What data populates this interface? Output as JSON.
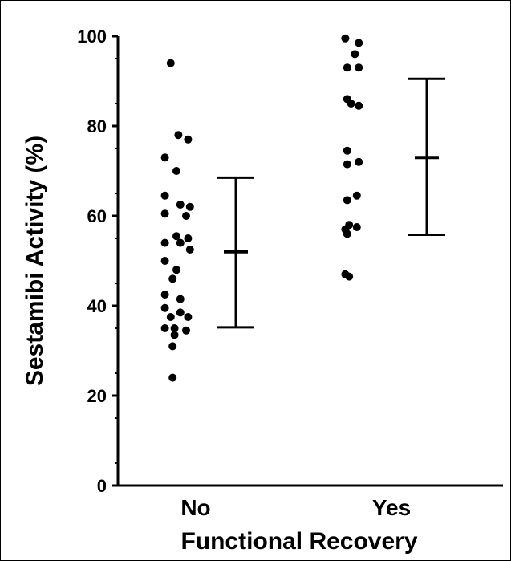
{
  "chart_data": {
    "type": "scatter",
    "title": "",
    "xlabel": "Functional Recovery",
    "ylabel": "Sestamibi Activity (%)",
    "categories": [
      "No",
      "Yes"
    ],
    "ylim": [
      0,
      100
    ],
    "yticks": [
      "0",
      "20",
      "40",
      "60",
      "80",
      "100"
    ],
    "grid": false,
    "series": [
      {
        "category": "No",
        "points": [
          [
            -0.13,
            94
          ],
          [
            -0.09,
            78
          ],
          [
            -0.04,
            77
          ],
          [
            -0.16,
            73
          ],
          [
            -0.1,
            70
          ],
          [
            -0.16,
            64.5
          ],
          [
            -0.08,
            62.5
          ],
          [
            -0.03,
            62
          ],
          [
            -0.16,
            60.5
          ],
          [
            -0.05,
            60
          ],
          [
            -0.1,
            55.5
          ],
          [
            -0.04,
            55
          ],
          [
            -0.16,
            54
          ],
          [
            -0.08,
            54
          ],
          [
            -0.03,
            52.5
          ],
          [
            -0.16,
            50
          ],
          [
            -0.1,
            48
          ],
          [
            -0.12,
            46
          ],
          [
            -0.16,
            42.5
          ],
          [
            -0.08,
            41.5
          ],
          [
            -0.16,
            39.5
          ],
          [
            -0.08,
            38.5
          ],
          [
            -0.13,
            37.5
          ],
          [
            -0.04,
            37.5
          ],
          [
            -0.16,
            35
          ],
          [
            -0.11,
            35
          ],
          [
            -0.05,
            34.5
          ],
          [
            -0.11,
            33.5
          ],
          [
            -0.12,
            31
          ],
          [
            -0.12,
            24
          ]
        ],
        "mean": 52,
        "sd_low": 35.2,
        "sd_high": 68.5
      },
      {
        "category": "Yes",
        "points": [
          [
            -0.24,
            99.5
          ],
          [
            -0.17,
            98.5
          ],
          [
            -0.19,
            96
          ],
          [
            -0.23,
            93
          ],
          [
            -0.17,
            93
          ],
          [
            -0.23,
            86
          ],
          [
            -0.21,
            85
          ],
          [
            -0.17,
            84.5
          ],
          [
            -0.23,
            74.5
          ],
          [
            -0.17,
            72
          ],
          [
            -0.23,
            71.5
          ],
          [
            -0.18,
            64.5
          ],
          [
            -0.23,
            63.5
          ],
          [
            -0.22,
            58
          ],
          [
            -0.18,
            57.5
          ],
          [
            -0.24,
            57
          ],
          [
            -0.23,
            56
          ],
          [
            -0.24,
            47
          ],
          [
            -0.22,
            46.5
          ]
        ],
        "mean": 73,
        "sd_low": 55.8,
        "sd_high": 90.5
      }
    ]
  }
}
